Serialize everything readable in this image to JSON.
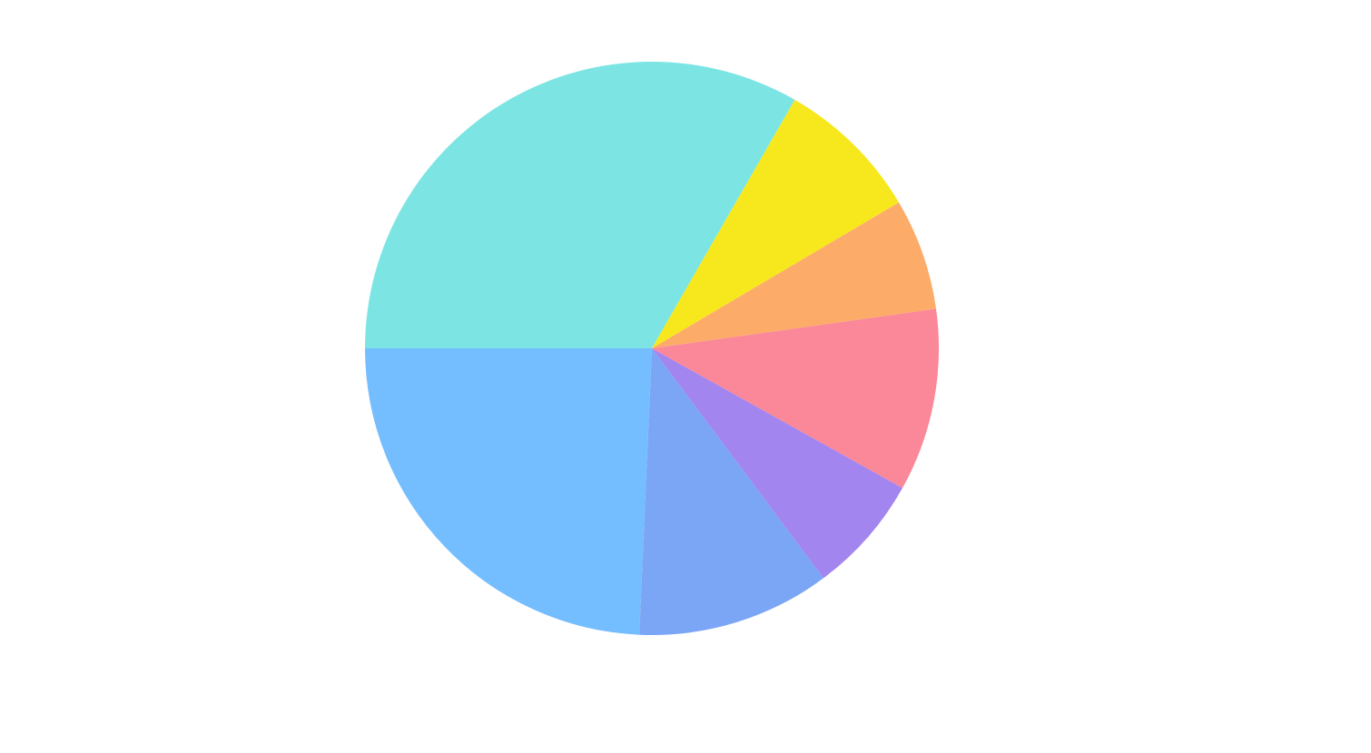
{
  "chart_data": {
    "type": "pie",
    "start_angle_deg": 180,
    "direction": "clockwise",
    "slices": [
      {
        "value": 33.3,
        "color": "#7ce5e3"
      },
      {
        "value": 8.2,
        "color": "#f7e81e"
      },
      {
        "value": 6.3,
        "color": "#fcab69"
      },
      {
        "value": 10.3,
        "color": "#fa8899"
      },
      {
        "value": 6.7,
        "color": "#a385f0"
      },
      {
        "value": 10.9,
        "color": "#7ba5f5"
      },
      {
        "value": 24.3,
        "color": "#74bdfe"
      }
    ]
  }
}
